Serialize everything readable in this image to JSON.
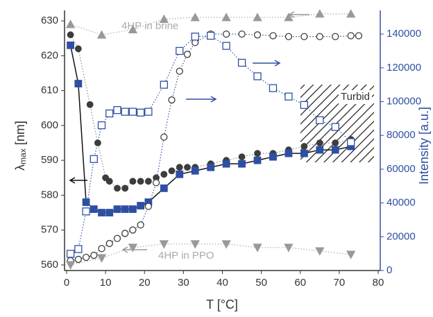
{
  "chart_data": {
    "type": "scatter",
    "xlabel": "T [°C]",
    "ylabel": [
      "λ",
      "max",
      " [nm]"
    ],
    "y2label": "Intensity [a.u.]",
    "xlim": [
      0,
      80
    ],
    "xticks": [
      0,
      10,
      20,
      30,
      40,
      50,
      60,
      70,
      80
    ],
    "ylim": [
      558.4,
      633
    ],
    "yticks": [
      560,
      570,
      580,
      590,
      600,
      610,
      620,
      630
    ],
    "y2lim": [
      0,
      154000
    ],
    "y2ticks": [
      0,
      20000,
      40000,
      60000,
      80000,
      100000,
      120000,
      140000
    ],
    "axis_color": "#333333",
    "y2_axis_color": "#2e4fa3",
    "annotations": [
      "4HP in brine",
      "4HP in PPO",
      "Turbid"
    ],
    "series": [
      {
        "marker": "circle",
        "filled": true,
        "color": "#3d3d3d",
        "line": "dotted",
        "line_color": "#8a8a8a",
        "axis": "y",
        "x": [
          1,
          3,
          6,
          8,
          10,
          11,
          13,
          15,
          17,
          19,
          21,
          23,
          25,
          27,
          29,
          31,
          33,
          37,
          41,
          45,
          49,
          53,
          57,
          61,
          65,
          69,
          73
        ],
        "values": [
          626,
          622,
          606,
          595,
          585,
          584,
          582,
          582,
          584,
          584,
          584,
          585,
          586,
          587,
          588,
          588,
          588,
          589,
          590,
          591,
          592,
          592,
          593,
          594,
          595,
          595,
          596
        ]
      },
      {
        "marker": "square",
        "filled": true,
        "color": "#2e4fa3",
        "line": "solid",
        "line_color": "#111111",
        "axis": "y",
        "x": [
          1,
          3,
          5,
          7,
          9,
          11,
          13,
          15,
          17,
          19,
          21,
          25,
          29,
          33,
          37,
          41,
          45,
          49,
          53,
          57,
          61,
          65,
          69,
          73
        ],
        "values": [
          623,
          612,
          578,
          576,
          575,
          575,
          576,
          576,
          576,
          577,
          578,
          582,
          586,
          587,
          588,
          589,
          589,
          590,
          591,
          592,
          592,
          593,
          593,
          594
        ]
      },
      {
        "marker": "circle",
        "filled": false,
        "color": "#3d3d3d",
        "line": "dotted",
        "line_color": "#2e4fa3",
        "axis": "y2",
        "x": [
          1,
          3,
          5,
          7,
          9,
          11,
          13,
          15,
          17,
          19,
          21,
          23,
          25,
          27,
          29,
          31,
          33,
          37,
          41,
          45,
          49,
          53,
          57,
          61,
          65,
          69,
          73,
          75
        ],
        "values": [
          5800,
          6600,
          7800,
          9000,
          13000,
          16000,
          19000,
          22000,
          24000,
          27000,
          38000,
          52000,
          79000,
          101000,
          118000,
          128000,
          135000,
          140000,
          140000,
          140000,
          139500,
          139000,
          138500,
          138500,
          138500,
          138500,
          139000,
          139000
        ]
      },
      {
        "marker": "square",
        "filled": false,
        "color": "#2e4fa3",
        "line": "dotted",
        "line_color": "#2e4fa3",
        "axis": "y2",
        "x": [
          1,
          3,
          5,
          7,
          9,
          11,
          13,
          15,
          17,
          19,
          21,
          25,
          29,
          33,
          37,
          41,
          45,
          49,
          53,
          57,
          61,
          65,
          69,
          73
        ],
        "values": [
          9900,
          12700,
          35000,
          66000,
          86000,
          93000,
          95000,
          94000,
          94000,
          93500,
          94000,
          110000,
          130000,
          138500,
          139000,
          133000,
          123000,
          115000,
          108000,
          103000,
          98000,
          89000,
          85000,
          76000
        ]
      },
      {
        "marker": "triangle-up",
        "filled": true,
        "color": "#999999",
        "line": "dotted",
        "line_color": "#aaaaaa",
        "axis": "y",
        "x": [
          1,
          9,
          17,
          25,
          33,
          41,
          49,
          57,
          65,
          73
        ],
        "values": [
          629,
          626,
          627.5,
          630.5,
          631,
          631,
          631,
          631,
          632,
          632
        ]
      },
      {
        "marker": "triangle-down",
        "filled": true,
        "color": "#999999",
        "line": "dotted",
        "line_color": "#aaaaaa",
        "axis": "y",
        "x": [
          1,
          9,
          17,
          25,
          33,
          41,
          49,
          57,
          65,
          73
        ],
        "values": [
          560,
          562,
          565,
          566,
          566,
          566,
          565,
          565,
          564,
          563
        ]
      }
    ]
  }
}
